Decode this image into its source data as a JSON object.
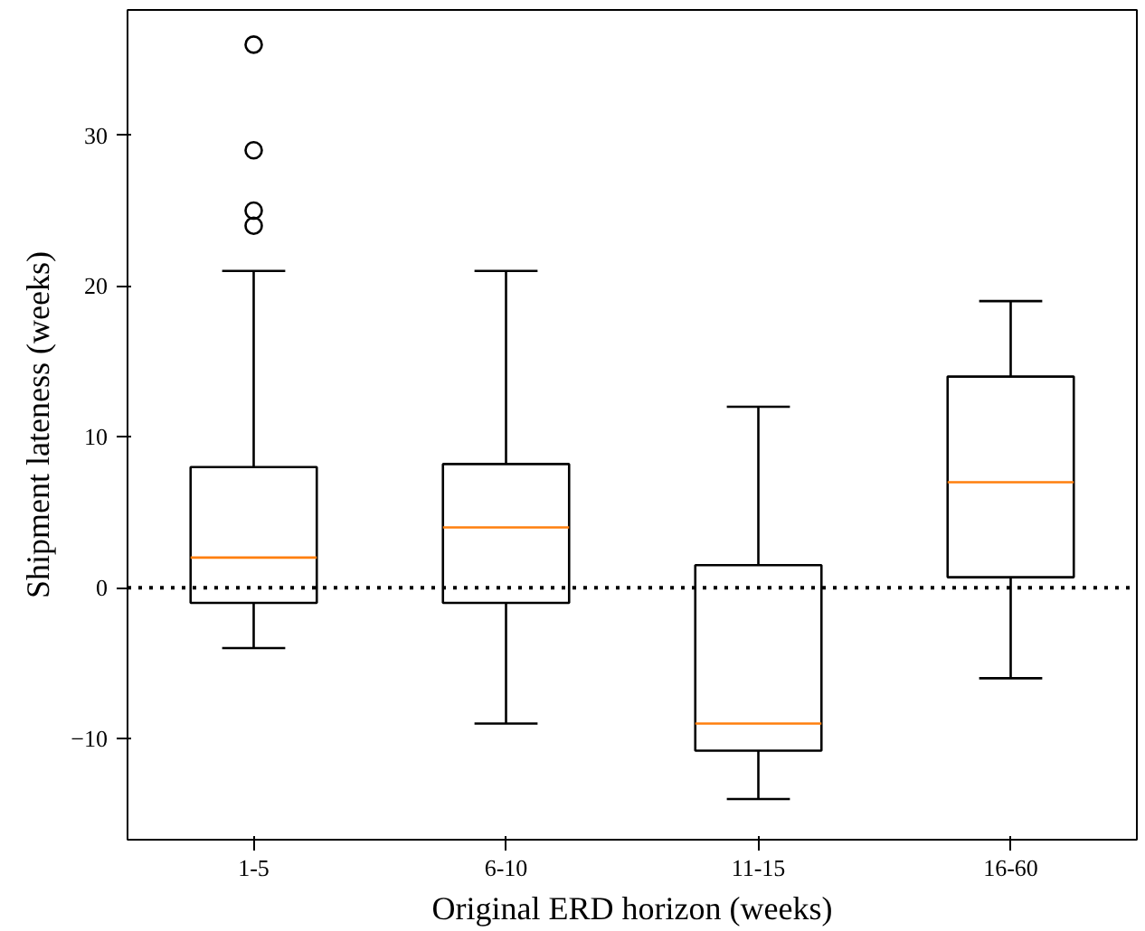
{
  "chart_data": {
    "type": "box",
    "xlabel": "Original ERD horizon (weeks)",
    "ylabel": "Shipment lateness (weeks)",
    "categories": [
      "1-5",
      "6-10",
      "11-15",
      "16-60"
    ],
    "boxes": [
      {
        "low": -4,
        "q1": -1,
        "median": 2,
        "q3": 8,
        "high": 21,
        "outliers": [
          24,
          25,
          29,
          36
        ]
      },
      {
        "low": -9,
        "q1": -1,
        "median": 4,
        "q3": 8.2,
        "high": 21
      },
      {
        "low": -14,
        "q1": -10.8,
        "median": -9,
        "q3": 1.5,
        "high": 12
      },
      {
        "low": -6,
        "q1": 0.7,
        "median": 7,
        "q3": 14,
        "high": 19
      }
    ],
    "color": "#000000",
    "ylim": [
      -16.7,
      38.3
    ],
    "yticks": [
      -10,
      0,
      10,
      20,
      30
    ],
    "grid": false,
    "ref_lines": [
      {
        "axis": "y",
        "value": 0,
        "color": "#000000",
        "line_style": "dotted"
      }
    ]
  }
}
